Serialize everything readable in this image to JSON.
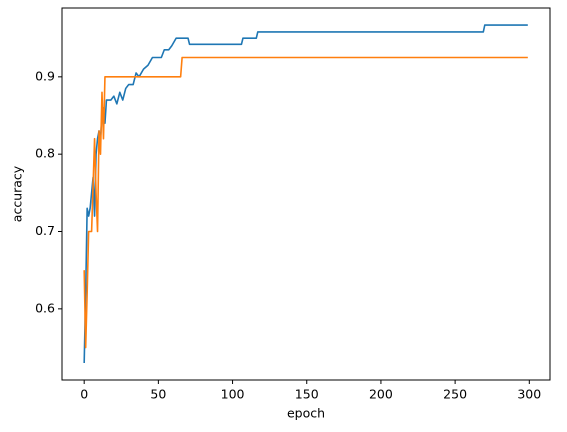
{
  "chart_data": {
    "type": "line",
    "x_label": "epoch",
    "y_label": "accuracy",
    "xlim": [
      -14.95,
      313.95
    ],
    "xticks": [
      0,
      50,
      100,
      150,
      200,
      250,
      300
    ],
    "ylim": [
      0.508,
      0.989
    ],
    "yticks": [
      0.6,
      0.7,
      0.8,
      0.9
    ],
    "series": [
      {
        "color": "#1f77b4",
        "x": [
          0,
          1,
          2,
          3,
          4,
          5,
          6,
          7,
          8,
          9,
          10,
          11,
          12,
          13,
          14,
          15,
          18,
          20,
          22,
          24,
          26,
          28,
          30,
          33,
          35,
          37,
          40,
          43,
          46,
          52,
          54,
          57,
          59,
          62,
          70,
          71,
          106,
          107,
          116,
          117,
          269,
          270,
          299
        ],
        "values": [
          0.53,
          0.62,
          0.73,
          0.72,
          0.73,
          0.75,
          0.77,
          0.72,
          0.8,
          0.82,
          0.83,
          0.82,
          0.85,
          0.86,
          0.84,
          0.87,
          0.87,
          0.875,
          0.865,
          0.88,
          0.87,
          0.885,
          0.89,
          0.89,
          0.905,
          0.9,
          0.91,
          0.915,
          0.925,
          0.925,
          0.935,
          0.935,
          0.94,
          0.95,
          0.95,
          0.942,
          0.942,
          0.95,
          0.95,
          0.958,
          0.958,
          0.967,
          0.967
        ]
      },
      {
        "color": "#ff7f0e",
        "x": [
          0,
          1,
          2,
          3,
          5,
          6,
          7,
          8,
          9,
          10,
          11,
          12,
          13,
          14,
          65,
          66,
          299
        ],
        "values": [
          0.65,
          0.55,
          0.62,
          0.7,
          0.7,
          0.76,
          0.82,
          0.75,
          0.7,
          0.83,
          0.8,
          0.88,
          0.82,
          0.9,
          0.9,
          0.925,
          0.925
        ]
      }
    ]
  }
}
